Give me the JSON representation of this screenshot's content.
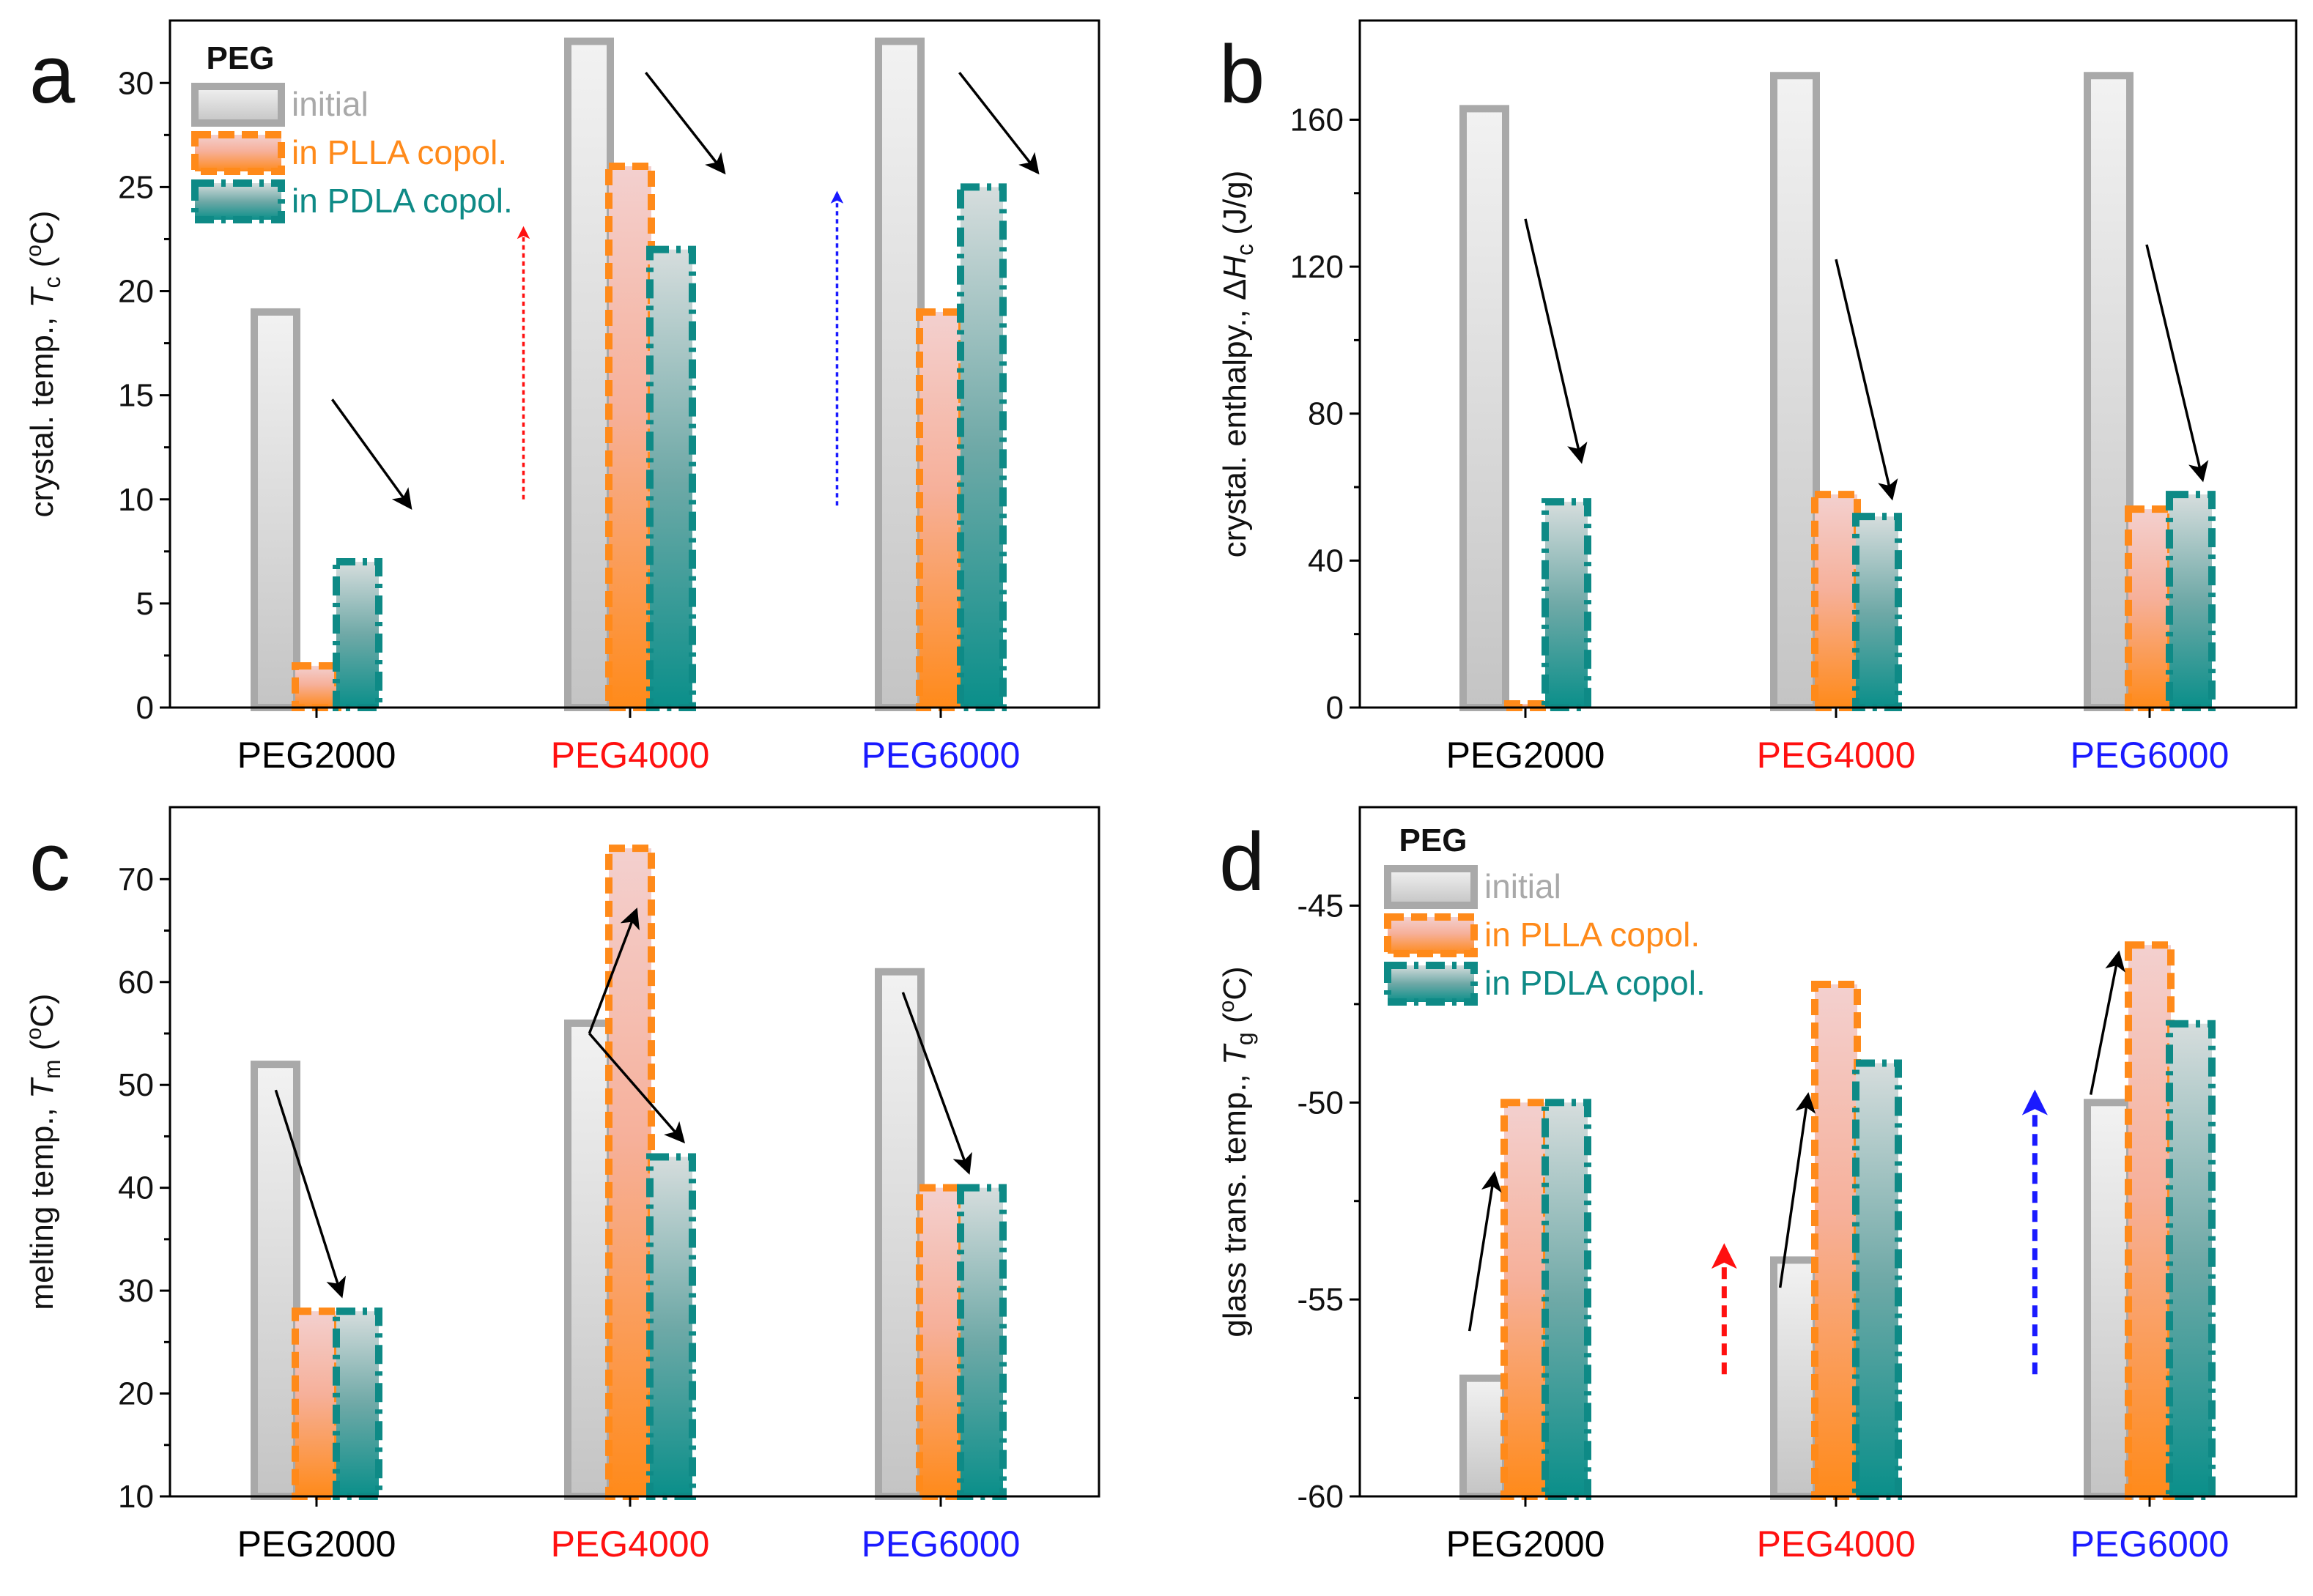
{
  "colors": {
    "initial_stroke": "#a9a9a9",
    "initial_fill_top": "#f2f2f2",
    "initial_fill_bottom": "#c4c4c4",
    "plla_stroke": "#ff8a1a",
    "plla_fill_top": "#f3d0cf",
    "plla_fill_bottom": "#ff8a1a",
    "pdla_stroke": "#0e8a86",
    "pdla_fill_top": "#d3dcdc",
    "pdla_fill_bottom": "#0a8f8a",
    "axis": "#000000",
    "black": "#000000",
    "red": "#ff1010",
    "blue": "#1a1aff"
  },
  "legend": {
    "title": "PEG",
    "items": [
      "initial",
      "in PLLA copol.",
      "in PDLA copol."
    ]
  },
  "chart_data": [
    {
      "type": "bar",
      "panel_letter": "a",
      "title": "",
      "ylabel": "crystal. temp., T_c (°C)",
      "ylabel_parts": {
        "lead": "crystal. temp., ",
        "symbol_prefix": "",
        "symbol": "T",
        "subscript": "c",
        "unit_open": " (",
        "unit_sup": "o",
        "unit_rest": "C)"
      },
      "ylim": [
        0,
        33
      ],
      "yticks": [
        0,
        5,
        10,
        15,
        20,
        25,
        30
      ],
      "categories": [
        "PEG2000",
        "PEG4000",
        "PEG6000"
      ],
      "category_colors": [
        "#000000",
        "#ff1010",
        "#1a1aff"
      ],
      "series": [
        {
          "name": "initial",
          "values": [
            19,
            32,
            32
          ]
        },
        {
          "name": "in PLLA copol.",
          "values": [
            2,
            26,
            19
          ]
        },
        {
          "name": "in PDLA copol.",
          "values": [
            7,
            22,
            25
          ]
        }
      ],
      "legend_visible": true,
      "arrows": [
        {
          "color": "black",
          "style": "solid",
          "from": [
            0.05,
            14.8
          ],
          "to": [
            0.3,
            9.6
          ]
        },
        {
          "color": "black",
          "style": "solid",
          "from": [
            1.05,
            30.5
          ],
          "to": [
            1.3,
            25.7
          ]
        },
        {
          "color": "black",
          "style": "solid",
          "from": [
            2.05,
            30.5
          ],
          "to": [
            2.3,
            25.7
          ]
        },
        {
          "color": "red",
          "style": "dotted",
          "from": [
            0.66,
            10
          ],
          "to": [
            0.66,
            23
          ]
        },
        {
          "color": "blue",
          "style": "dotted",
          "from": [
            1.66,
            9.7
          ],
          "to": [
            1.66,
            24.7
          ]
        }
      ]
    },
    {
      "type": "bar",
      "panel_letter": "b",
      "title": "",
      "ylabel": "crystal. enthalpy., ΔH_c (J/g)",
      "ylabel_parts": {
        "lead": "crystal. enthalpy., ",
        "symbol_prefix": "Δ",
        "symbol": "H",
        "subscript": "c",
        "unit_open": " (J/g)",
        "unit_sup": "",
        "unit_rest": ""
      },
      "ylim": [
        0,
        187
      ],
      "yticks": [
        0,
        40,
        80,
        120,
        160
      ],
      "categories": [
        "PEG2000",
        "PEG4000",
        "PEG6000"
      ],
      "category_colors": [
        "#000000",
        "#ff1010",
        "#1a1aff"
      ],
      "series": [
        {
          "name": "initial",
          "values": [
            163,
            172,
            172
          ]
        },
        {
          "name": "in PLLA copol.",
          "values": [
            1,
            58,
            54
          ]
        },
        {
          "name": "in PDLA copol.",
          "values": [
            56,
            52,
            58
          ]
        }
      ],
      "legend_visible": false,
      "arrows": [
        {
          "color": "black",
          "style": "solid",
          "from": [
            0.0,
            133
          ],
          "to": [
            0.18,
            67
          ]
        },
        {
          "color": "black",
          "style": "solid",
          "from": [
            1.0,
            122
          ],
          "to": [
            1.18,
            57
          ]
        },
        {
          "color": "black",
          "style": "solid",
          "from": [
            2.0,
            126
          ],
          "to": [
            2.18,
            62
          ]
        }
      ]
    },
    {
      "type": "bar",
      "panel_letter": "c",
      "title": "",
      "ylabel": "melting temp., T_m (°C)",
      "ylabel_parts": {
        "lead": "melting temp., ",
        "symbol_prefix": "",
        "symbol": "T",
        "subscript": "m",
        "unit_open": " (",
        "unit_sup": "o",
        "unit_rest": "C)"
      },
      "ylim": [
        10,
        77
      ],
      "yticks": [
        10,
        20,
        30,
        40,
        50,
        60,
        70
      ],
      "categories": [
        "PEG2000",
        "PEG4000",
        "PEG6000"
      ],
      "category_colors": [
        "#000000",
        "#ff1010",
        "#1a1aff"
      ],
      "series": [
        {
          "name": "initial",
          "values": [
            52,
            56,
            61
          ]
        },
        {
          "name": "in PLLA copol.",
          "values": [
            28,
            73,
            40
          ]
        },
        {
          "name": "in PDLA copol.",
          "values": [
            28,
            43,
            40
          ]
        }
      ],
      "legend_visible": false,
      "arrows": [
        {
          "color": "black",
          "style": "solid",
          "from": [
            -0.13,
            49.5
          ],
          "to": [
            0.08,
            29.5
          ]
        },
        {
          "color": "black",
          "style": "solid",
          "from": [
            0.87,
            55
          ],
          "to": [
            1.02,
            67
          ]
        },
        {
          "color": "black",
          "style": "solid",
          "from": [
            0.87,
            55
          ],
          "to": [
            1.17,
            44.5
          ]
        },
        {
          "color": "black",
          "style": "solid",
          "from": [
            1.87,
            59
          ],
          "to": [
            2.08,
            41.5
          ]
        }
      ]
    },
    {
      "type": "bar",
      "panel_letter": "d",
      "title": "",
      "ylabel": "glass trans. temp., T_g (°C)",
      "ylabel_parts": {
        "lead": "glass trans. temp., ",
        "symbol_prefix": "",
        "symbol": "T",
        "subscript": "g",
        "unit_open": " (",
        "unit_sup": "o",
        "unit_rest": "C)"
      },
      "ylim": [
        -60,
        -42.5
      ],
      "yticks": [
        -60,
        -55,
        -50,
        -45
      ],
      "categories": [
        "PEG2000",
        "PEG4000",
        "PEG6000"
      ],
      "category_colors": [
        "#000000",
        "#ff1010",
        "#1a1aff"
      ],
      "series": [
        {
          "name": "initial",
          "values": [
            -57,
            -54,
            -50
          ]
        },
        {
          "name": "in PLLA copol.",
          "values": [
            -50,
            -47,
            -46
          ]
        },
        {
          "name": "in PDLA copol.",
          "values": [
            -50,
            -49,
            -48
          ]
        }
      ],
      "legend_visible": true,
      "arrows": [
        {
          "color": "black",
          "style": "solid",
          "from": [
            -0.18,
            -55.8
          ],
          "to": [
            -0.1,
            -51.8
          ]
        },
        {
          "color": "black",
          "style": "solid",
          "from": [
            0.82,
            -54.7
          ],
          "to": [
            0.91,
            -49.8
          ]
        },
        {
          "color": "black",
          "style": "solid",
          "from": [
            1.82,
            -49.8
          ],
          "to": [
            1.91,
            -46.2
          ]
        },
        {
          "color": "red",
          "style": "dashed",
          "from": [
            0.64,
            -56.9
          ],
          "to": [
            0.64,
            -53.7
          ]
        },
        {
          "color": "blue",
          "style": "dashed",
          "from": [
            1.64,
            -56.9
          ],
          "to": [
            1.64,
            -49.8
          ]
        }
      ]
    }
  ]
}
